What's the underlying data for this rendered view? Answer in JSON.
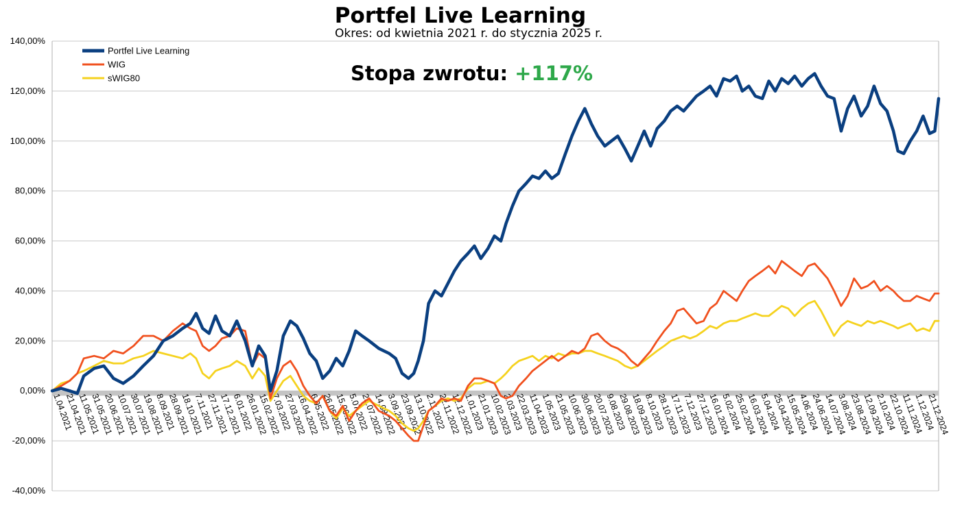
{
  "chart_data": {
    "type": "line",
    "title": "Portfel Live Learning",
    "subtitle": "Okres: od kwietnia 2021 r. do stycznia 2025 r.",
    "annotation": {
      "label": "Stopa zwrotu:",
      "value": "+117%",
      "value_color": "#2ea84a"
    },
    "ylim": [
      -40,
      140
    ],
    "yticks": [
      -40,
      -20,
      0,
      20,
      40,
      60,
      80,
      100,
      120,
      140
    ],
    "ytick_labels": [
      "-40,00%",
      "-20,00%",
      "0,00%",
      "20,00%",
      "40,00%",
      "60,00%",
      "80,00%",
      "100,00%",
      "120,00%",
      "140,00%"
    ],
    "x_start": "2021-04-01",
    "x_end": "2025-01-03",
    "xtick_labels": [
      "1.04.2021",
      "21.04.2021",
      "11.05.2021",
      "31.05.2021",
      "20.06.2021",
      "10.07.2021",
      "30.07.2021",
      "19.08.2021",
      "8.09.2021",
      "28.09.2021",
      "18.10.2021",
      "7.11.2021",
      "27.11.2021",
      "17.12.2021",
      "6.01.2022",
      "26.01.2022",
      "15.02.2022",
      "7.03.2022",
      "27.03.2022",
      "16.04.2022",
      "6.05.2022",
      "26.05.2022",
      "15.06.2022",
      "5.07.2022",
      "25.07.2022",
      "14.08.2022",
      "3.09.2022",
      "23.09.2022",
      "13.10.2022",
      "2.11.2022",
      "22.11.2022",
      "12.12.2022",
      "1.01.2023",
      "21.01.2023",
      "10.02.2023",
      "2.03.2023",
      "22.03.2023",
      "11.04.2023",
      "1.05.2023",
      "21.05.2023",
      "10.06.2023",
      "30.06.2023",
      "20.07.2023",
      "9.08.2023",
      "29.08.2023",
      "18.09.2023",
      "8.10.2023",
      "28.10.2023",
      "17.11.2023",
      "7.12.2023",
      "27.12.2023",
      "16.01.2024",
      "5.02.2024",
      "25.02.2024",
      "16.03.2024",
      "5.04.2024",
      "25.04.2024",
      "15.05.2024",
      "4.06.2024",
      "24.06.2024",
      "14.07.2024",
      "3.08.2024",
      "23.08.2024",
      "12.09.2024",
      "2.10.2024",
      "22.10.2024",
      "11.11.2024",
      "1.12.2024",
      "21.12.2024"
    ],
    "grid": true,
    "legend_position": "top-left",
    "series": [
      {
        "name": "Portfel Live Learning",
        "color": "#0a3f80",
        "x": [
          "2021-04-01",
          "2021-04-15",
          "2021-04-28",
          "2021-05-10",
          "2021-05-20",
          "2021-06-05",
          "2021-06-20",
          "2021-07-05",
          "2021-07-20",
          "2021-08-05",
          "2021-08-20",
          "2021-09-05",
          "2021-09-20",
          "2021-10-05",
          "2021-10-20",
          "2021-11-01",
          "2021-11-10",
          "2021-11-20",
          "2021-11-30",
          "2021-12-10",
          "2021-12-20",
          "2022-01-01",
          "2022-01-12",
          "2022-01-25",
          "2022-02-05",
          "2022-02-15",
          "2022-02-25",
          "2022-03-05",
          "2022-03-15",
          "2022-03-25",
          "2022-04-05",
          "2022-04-15",
          "2022-04-25",
          "2022-05-05",
          "2022-05-15",
          "2022-05-25",
          "2022-06-05",
          "2022-06-15",
          "2022-06-25",
          "2022-07-05",
          "2022-07-15",
          "2022-07-25",
          "2022-08-05",
          "2022-08-20",
          "2022-09-05",
          "2022-09-15",
          "2022-09-25",
          "2022-10-05",
          "2022-10-13",
          "2022-10-20",
          "2022-10-28",
          "2022-11-05",
          "2022-11-15",
          "2022-11-25",
          "2022-12-05",
          "2022-12-15",
          "2022-12-25",
          "2023-01-05",
          "2023-01-15",
          "2023-01-25",
          "2023-02-05",
          "2023-02-15",
          "2023-02-25",
          "2023-03-05",
          "2023-03-15",
          "2023-03-25",
          "2023-04-05",
          "2023-04-15",
          "2023-04-25",
          "2023-05-05",
          "2023-05-15",
          "2023-05-25",
          "2023-06-05",
          "2023-06-15",
          "2023-06-25",
          "2023-07-05",
          "2023-07-15",
          "2023-07-25",
          "2023-08-05",
          "2023-08-15",
          "2023-08-25",
          "2023-09-05",
          "2023-09-15",
          "2023-09-25",
          "2023-10-05",
          "2023-10-15",
          "2023-10-25",
          "2023-11-05",
          "2023-11-15",
          "2023-11-25",
          "2023-12-05",
          "2023-12-15",
          "2023-12-25",
          "2024-01-05",
          "2024-01-15",
          "2024-01-25",
          "2024-02-05",
          "2024-02-15",
          "2024-02-25",
          "2024-03-05",
          "2024-03-15",
          "2024-03-25",
          "2024-04-05",
          "2024-04-15",
          "2024-04-25",
          "2024-05-05",
          "2024-05-15",
          "2024-05-25",
          "2024-06-05",
          "2024-06-15",
          "2024-06-25",
          "2024-07-05",
          "2024-07-15",
          "2024-07-25",
          "2024-08-05",
          "2024-08-15",
          "2024-08-25",
          "2024-09-05",
          "2024-09-15",
          "2024-09-25",
          "2024-10-05",
          "2024-10-15",
          "2024-10-25",
          "2024-11-01",
          "2024-11-10",
          "2024-11-20",
          "2024-11-30",
          "2024-12-10",
          "2024-12-20",
          "2024-12-28",
          "2025-01-03"
        ],
        "y": [
          0,
          1,
          0,
          -1,
          6,
          9,
          10,
          5,
          3,
          6,
          10,
          14,
          20,
          22,
          25,
          27,
          31,
          25,
          23,
          30,
          24,
          22,
          28,
          20,
          10,
          18,
          14,
          0,
          8,
          22,
          28,
          26,
          21,
          15,
          12,
          5,
          8,
          13,
          10,
          16,
          24,
          22,
          20,
          17,
          15,
          13,
          7,
          5,
          7,
          12,
          20,
          35,
          40,
          38,
          43,
          48,
          52,
          55,
          58,
          53,
          57,
          62,
          60,
          67,
          74,
          80,
          83,
          86,
          85,
          88,
          85,
          87,
          95,
          102,
          108,
          113,
          107,
          102,
          98,
          100,
          102,
          97,
          92,
          98,
          104,
          98,
          105,
          108,
          112,
          114,
          112,
          115,
          118,
          120,
          122,
          118,
          125,
          124,
          126,
          120,
          122,
          118,
          117,
          124,
          120,
          125,
          123,
          126,
          122,
          125,
          127,
          122,
          118,
          117,
          104,
          113,
          118,
          110,
          114,
          122,
          115,
          112,
          104,
          96,
          95,
          100,
          104,
          110,
          103,
          104,
          117
        ]
      },
      {
        "name": "WIG",
        "color": "#f0501e",
        "x": [
          "2021-04-01",
          "2021-04-15",
          "2021-04-28",
          "2021-05-10",
          "2021-05-20",
          "2021-06-05",
          "2021-06-20",
          "2021-07-05",
          "2021-07-20",
          "2021-08-05",
          "2021-08-20",
          "2021-09-05",
          "2021-09-20",
          "2021-10-05",
          "2021-10-20",
          "2021-11-01",
          "2021-11-10",
          "2021-11-20",
          "2021-11-30",
          "2021-12-10",
          "2021-12-20",
          "2022-01-01",
          "2022-01-12",
          "2022-01-25",
          "2022-02-05",
          "2022-02-15",
          "2022-02-25",
          "2022-03-05",
          "2022-03-15",
          "2022-03-25",
          "2022-04-05",
          "2022-04-15",
          "2022-04-25",
          "2022-05-05",
          "2022-05-15",
          "2022-05-25",
          "2022-06-05",
          "2022-06-15",
          "2022-06-25",
          "2022-07-05",
          "2022-07-15",
          "2022-07-25",
          "2022-08-05",
          "2022-08-20",
          "2022-09-05",
          "2022-09-15",
          "2022-09-25",
          "2022-10-05",
          "2022-10-13",
          "2022-10-20",
          "2022-10-28",
          "2022-11-05",
          "2022-11-15",
          "2022-11-25",
          "2022-12-05",
          "2022-12-15",
          "2022-12-25",
          "2023-01-05",
          "2023-01-15",
          "2023-01-25",
          "2023-02-05",
          "2023-02-15",
          "2023-02-25",
          "2023-03-05",
          "2023-03-15",
          "2023-03-25",
          "2023-04-05",
          "2023-04-15",
          "2023-04-25",
          "2023-05-05",
          "2023-05-15",
          "2023-05-25",
          "2023-06-05",
          "2023-06-15",
          "2023-06-25",
          "2023-07-05",
          "2023-07-15",
          "2023-07-25",
          "2023-08-05",
          "2023-08-15",
          "2023-08-25",
          "2023-09-05",
          "2023-09-15",
          "2023-09-25",
          "2023-10-05",
          "2023-10-15",
          "2023-10-25",
          "2023-11-05",
          "2023-11-15",
          "2023-11-25",
          "2023-12-05",
          "2023-12-15",
          "2023-12-25",
          "2024-01-05",
          "2024-01-15",
          "2024-01-25",
          "2024-02-05",
          "2024-02-15",
          "2024-02-25",
          "2024-03-05",
          "2024-03-15",
          "2024-03-25",
          "2024-04-05",
          "2024-04-15",
          "2024-04-25",
          "2024-05-05",
          "2024-05-15",
          "2024-05-25",
          "2024-06-05",
          "2024-06-15",
          "2024-06-25",
          "2024-07-05",
          "2024-07-15",
          "2024-07-25",
          "2024-08-05",
          "2024-08-15",
          "2024-08-25",
          "2024-09-05",
          "2024-09-15",
          "2024-09-25",
          "2024-10-05",
          "2024-10-15",
          "2024-10-25",
          "2024-11-01",
          "2024-11-10",
          "2024-11-20",
          "2024-11-30",
          "2024-12-10",
          "2024-12-20",
          "2024-12-28",
          "2025-01-03"
        ],
        "y": [
          0,
          2,
          4,
          7,
          13,
          14,
          13,
          16,
          15,
          18,
          22,
          22,
          20,
          24,
          27,
          25,
          24,
          18,
          16,
          18,
          21,
          22,
          25,
          24,
          10,
          15,
          13,
          -3,
          5,
          10,
          12,
          8,
          2,
          -2,
          -5,
          -2,
          -8,
          -10,
          -6,
          -12,
          -8,
          -5,
          -3,
          -8,
          -10,
          -12,
          -15,
          -18,
          -20,
          -20,
          -14,
          -8,
          -6,
          -3,
          -4,
          -3,
          -4,
          2,
          5,
          5,
          4,
          3,
          -2,
          -3,
          -2,
          2,
          5,
          8,
          10,
          12,
          14,
          12,
          14,
          16,
          15,
          17,
          22,
          23,
          20,
          18,
          17,
          15,
          12,
          10,
          13,
          16,
          20,
          24,
          27,
          32,
          33,
          30,
          27,
          28,
          33,
          35,
          40,
          38,
          36,
          40,
          44,
          46,
          48,
          50,
          47,
          52,
          50,
          48,
          46,
          50,
          51,
          48,
          45,
          40,
          34,
          38,
          45,
          41,
          42,
          44,
          40,
          42,
          40,
          38,
          36,
          36,
          38,
          37,
          36,
          39,
          39
        ]
      },
      {
        "name": "sWIG80",
        "color": "#f5d21e",
        "x": [
          "2021-04-01",
          "2021-04-15",
          "2021-04-28",
          "2021-05-10",
          "2021-05-20",
          "2021-06-05",
          "2021-06-20",
          "2021-07-05",
          "2021-07-20",
          "2021-08-05",
          "2021-08-20",
          "2021-09-05",
          "2021-09-20",
          "2021-10-05",
          "2021-10-20",
          "2021-11-01",
          "2021-11-10",
          "2021-11-20",
          "2021-11-30",
          "2021-12-10",
          "2021-12-20",
          "2022-01-01",
          "2022-01-12",
          "2022-01-25",
          "2022-02-05",
          "2022-02-15",
          "2022-02-25",
          "2022-03-05",
          "2022-03-15",
          "2022-03-25",
          "2022-04-05",
          "2022-04-15",
          "2022-04-25",
          "2022-05-05",
          "2022-05-15",
          "2022-05-25",
          "2022-06-05",
          "2022-06-15",
          "2022-06-25",
          "2022-07-05",
          "2022-07-15",
          "2022-07-25",
          "2022-08-05",
          "2022-08-20",
          "2022-09-05",
          "2022-09-15",
          "2022-09-25",
          "2022-10-05",
          "2022-10-13",
          "2022-10-20",
          "2022-10-28",
          "2022-11-05",
          "2022-11-15",
          "2022-11-25",
          "2022-12-05",
          "2022-12-15",
          "2022-12-25",
          "2023-01-05",
          "2023-01-15",
          "2023-01-25",
          "2023-02-05",
          "2023-02-15",
          "2023-02-25",
          "2023-03-05",
          "2023-03-15",
          "2023-03-25",
          "2023-04-05",
          "2023-04-15",
          "2023-04-25",
          "2023-05-05",
          "2023-05-15",
          "2023-05-25",
          "2023-06-05",
          "2023-06-15",
          "2023-06-25",
          "2023-07-05",
          "2023-07-15",
          "2023-07-25",
          "2023-08-05",
          "2023-08-15",
          "2023-08-25",
          "2023-09-05",
          "2023-09-15",
          "2023-09-25",
          "2023-10-05",
          "2023-10-15",
          "2023-10-25",
          "2023-11-05",
          "2023-11-15",
          "2023-11-25",
          "2023-12-05",
          "2023-12-15",
          "2023-12-25",
          "2024-01-05",
          "2024-01-15",
          "2024-01-25",
          "2024-02-05",
          "2024-02-15",
          "2024-02-25",
          "2024-03-05",
          "2024-03-15",
          "2024-03-25",
          "2024-04-05",
          "2024-04-15",
          "2024-04-25",
          "2024-05-05",
          "2024-05-15",
          "2024-05-25",
          "2024-06-05",
          "2024-06-15",
          "2024-06-25",
          "2024-07-05",
          "2024-07-15",
          "2024-07-25",
          "2024-08-05",
          "2024-08-15",
          "2024-08-25",
          "2024-09-05",
          "2024-09-15",
          "2024-09-25",
          "2024-10-05",
          "2024-10-15",
          "2024-10-25",
          "2024-11-01",
          "2024-11-10",
          "2024-11-20",
          "2024-11-30",
          "2024-12-10",
          "2024-12-20",
          "2024-12-28",
          "2025-01-03"
        ],
        "y": [
          0,
          3,
          4,
          7,
          8,
          10,
          12,
          11,
          11,
          13,
          14,
          16,
          15,
          14,
          13,
          15,
          13,
          7,
          5,
          8,
          9,
          10,
          12,
          10,
          5,
          9,
          6,
          -4,
          0,
          4,
          6,
          2,
          -2,
          -4,
          -5,
          -2,
          -8,
          -11,
          -7,
          -10,
          -8,
          -6,
          -4,
          -6,
          -8,
          -10,
          -13,
          -15,
          -16,
          -15,
          -12,
          -8,
          -6,
          -4,
          -3,
          -4,
          -3,
          1,
          3,
          3,
          4,
          3,
          5,
          7,
          10,
          12,
          13,
          14,
          12,
          14,
          13,
          15,
          14,
          15,
          15,
          16,
          16,
          15,
          14,
          13,
          12,
          10,
          9,
          10,
          12,
          14,
          16,
          18,
          20,
          21,
          22,
          21,
          22,
          24,
          26,
          25,
          27,
          28,
          28,
          29,
          30,
          31,
          30,
          30,
          32,
          34,
          33,
          30,
          33,
          35,
          36,
          32,
          27,
          22,
          26,
          28,
          27,
          26,
          28,
          27,
          28,
          27,
          26,
          25,
          26,
          27,
          24,
          25,
          24,
          28,
          28
        ]
      }
    ]
  }
}
